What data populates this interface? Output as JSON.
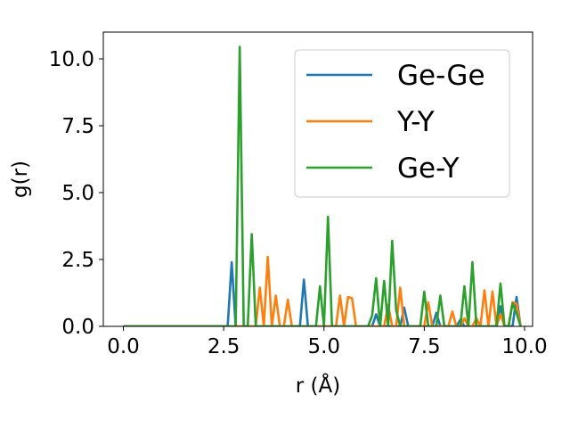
{
  "chart_data": {
    "type": "line",
    "xlabel": "r (Å)",
    "ylabel": "g(r)",
    "xlim": [
      -0.5,
      10.2
    ],
    "ylim": [
      0,
      11
    ],
    "xticks": [
      0.0,
      2.5,
      5.0,
      7.5,
      10.0
    ],
    "xtick_labels": [
      "0.0",
      "2.5",
      "5.0",
      "7.5",
      "10.0"
    ],
    "yticks": [
      0.0,
      2.5,
      5.0,
      7.5,
      10.0
    ],
    "ytick_labels": [
      "0.0",
      "2.5",
      "5.0",
      "7.5",
      "10.0"
    ],
    "grid": false,
    "legend": "top-right",
    "series": [
      {
        "name": "Ge-Ge",
        "color": "#1f77b4",
        "x": [
          0.0,
          2.6,
          2.7,
          2.8,
          4.4,
          4.5,
          4.6,
          6.2,
          6.3,
          6.4,
          6.9,
          7.0,
          7.1,
          7.7,
          7.8,
          7.9,
          8.3,
          8.4,
          8.5,
          9.3,
          9.4,
          9.5,
          9.7,
          9.8,
          9.9
        ],
        "y": [
          0.0,
          0.0,
          2.4,
          0.0,
          0.0,
          1.75,
          0.0,
          0.0,
          0.45,
          0.0,
          0.0,
          0.7,
          0.0,
          0.0,
          0.5,
          0.0,
          0.0,
          0.25,
          0.0,
          0.0,
          0.75,
          0.0,
          0.0,
          1.1,
          0.0
        ]
      },
      {
        "name": "Y-Y",
        "color": "#ff7f0e",
        "x": [
          0.0,
          3.3,
          3.4,
          3.5,
          3.6,
          3.7,
          3.8,
          3.9,
          4.0,
          4.1,
          4.2,
          4.3,
          5.3,
          5.4,
          5.5,
          5.6,
          5.7,
          5.8,
          6.5,
          6.6,
          6.7,
          6.8,
          6.9,
          7.0,
          7.5,
          7.6,
          7.7,
          8.1,
          8.2,
          8.3,
          8.4,
          8.5,
          8.6,
          8.7,
          8.8,
          8.9,
          9.0,
          9.1,
          9.2,
          9.3,
          9.4,
          9.5,
          9.6,
          9.7,
          9.8,
          9.9
        ],
        "y": [
          0.0,
          0.0,
          1.45,
          0.0,
          2.6,
          0.0,
          1.15,
          0.0,
          0.0,
          1.0,
          0.0,
          0.0,
          0.0,
          1.15,
          0.0,
          1.1,
          1.05,
          0.0,
          0.0,
          0.8,
          0.0,
          0.0,
          1.45,
          0.0,
          0.0,
          0.9,
          0.0,
          0.0,
          0.55,
          0.0,
          0.0,
          0.3,
          0.0,
          0.0,
          0.3,
          0.0,
          1.35,
          0.0,
          1.3,
          0.0,
          0.45,
          0.0,
          0.0,
          0.9,
          0.85,
          0.0
        ]
      },
      {
        "name": "Ge-Y",
        "color": "#2ca02c",
        "x": [
          0.0,
          2.8,
          2.9,
          3.0,
          3.1,
          3.2,
          3.3,
          4.8,
          4.9,
          5.0,
          5.1,
          5.2,
          6.1,
          6.2,
          6.3,
          6.4,
          6.5,
          6.6,
          6.7,
          6.8,
          6.9,
          7.0,
          7.4,
          7.5,
          7.6,
          7.8,
          7.9,
          8.0,
          8.4,
          8.5,
          8.6,
          8.7,
          8.8,
          8.9,
          9.3,
          9.4,
          9.5,
          9.6,
          9.7,
          9.8,
          9.9
        ],
        "y": [
          0.0,
          0.0,
          10.45,
          0.0,
          0.0,
          3.45,
          0.0,
          0.0,
          1.5,
          0.0,
          4.1,
          0.0,
          0.0,
          0.4,
          1.8,
          0.0,
          1.7,
          0.0,
          3.2,
          0.6,
          0.0,
          0.0,
          0.0,
          1.3,
          0.0,
          0.0,
          1.15,
          0.0,
          0.0,
          1.5,
          0.0,
          2.4,
          0.0,
          0.0,
          0.0,
          1.6,
          0.0,
          0.0,
          0.85,
          0.5,
          0.0
        ]
      }
    ]
  }
}
